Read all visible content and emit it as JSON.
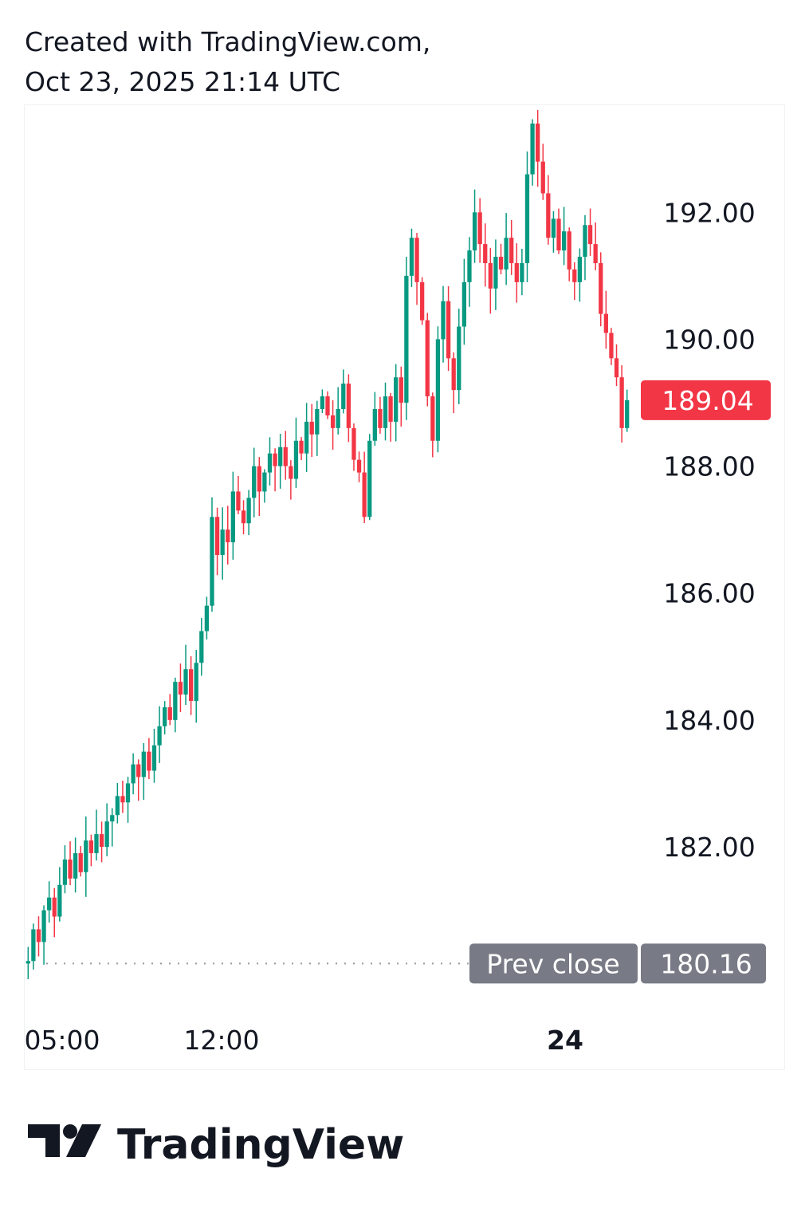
{
  "header": {
    "line1": "Created with TradingView.com,",
    "line2": "Oct 23, 2025 21:14 UTC"
  },
  "chart_data": {
    "type": "candlestick",
    "title": "",
    "y_axis": {
      "ticks": [
        182.0,
        184.0,
        186.0,
        188.0,
        190.0,
        192.0
      ],
      "tick_labels": [
        "182.00",
        "184.00",
        "186.00",
        "188.00",
        "190.00",
        "192.00"
      ],
      "range": [
        179.7,
        193.55
      ]
    },
    "x_axis": {
      "tick_labels": [
        {
          "label": "05:00",
          "bold": false
        },
        {
          "label": "12:00",
          "bold": false
        },
        {
          "label": "24",
          "bold": true
        }
      ]
    },
    "grid": false,
    "last_price": {
      "value": 189.04,
      "label": "189.04",
      "color": "#f23645"
    },
    "prev_close": {
      "value": 180.16,
      "label": "Prev close",
      "value_label": "180.16",
      "color": "#787b86"
    },
    "up_color": "#089981",
    "down_color": "#f23645",
    "close_series": [
      180.2,
      180.7,
      180.5,
      181.0,
      181.2,
      180.9,
      181.4,
      181.8,
      181.5,
      181.9,
      181.6,
      182.1,
      181.9,
      182.2,
      182.0,
      182.4,
      182.5,
      182.8,
      182.7,
      183.0,
      183.3,
      183.1,
      183.5,
      183.2,
      183.6,
      183.9,
      184.2,
      184.0,
      184.6,
      184.4,
      184.8,
      184.3,
      184.9,
      185.4,
      185.8,
      187.2,
      186.6,
      187.0,
      186.8,
      187.6,
      187.3,
      187.1,
      187.5,
      188.0,
      187.6,
      187.9,
      188.2,
      188.0,
      188.3,
      188.0,
      187.8,
      188.4,
      188.2,
      188.7,
      188.5,
      188.9,
      189.1,
      188.8,
      188.6,
      188.9,
      189.3,
      188.6,
      188.1,
      187.9,
      187.2,
      188.4,
      188.9,
      188.6,
      189.1,
      188.7,
      189.4,
      189.0,
      191.0,
      191.6,
      190.9,
      190.3,
      189.1,
      188.4,
      190.0,
      190.6,
      189.7,
      189.2,
      190.2,
      190.9,
      191.4,
      192.0,
      191.5,
      191.2,
      190.8,
      191.3,
      191.1,
      191.6,
      191.2,
      190.9,
      191.2,
      192.6,
      193.4,
      192.8,
      192.3,
      191.6,
      191.9,
      191.4,
      191.7,
      191.1,
      190.9,
      191.3,
      191.8,
      191.5,
      191.2,
      190.4,
      190.1,
      189.7,
      189.4,
      188.6,
      189.04
    ]
  }
}
